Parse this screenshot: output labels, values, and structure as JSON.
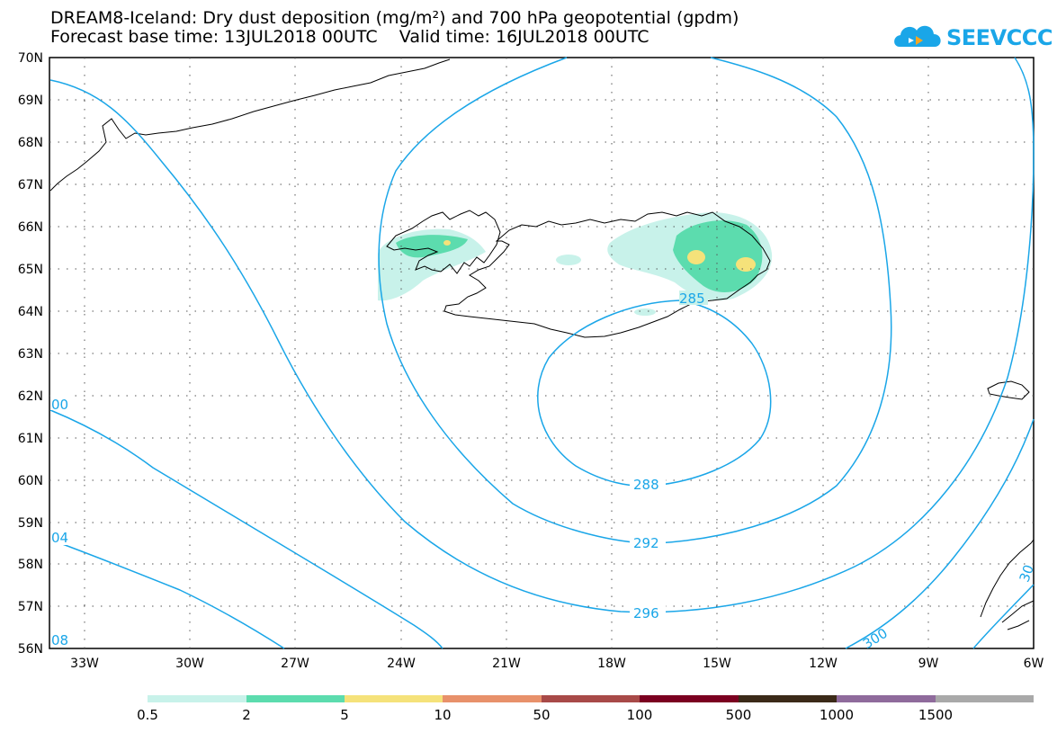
{
  "header": {
    "title_line1": "DREAM8-Iceland: Dry dust deposition (mg/m²) and 700 hPa geopotential (gpdm)",
    "title_line2": "Forecast base time: 13JUL2018 00UTC    Valid time: 16JUL2018 00UTC"
  },
  "logo": {
    "text": "SEEVCCC",
    "color": "#1aa6e8"
  },
  "axes": {
    "latitudes": [
      "70N",
      "69N",
      "68N",
      "67N",
      "66N",
      "65N",
      "64N",
      "63N",
      "62N",
      "61N",
      "60N",
      "59N",
      "58N",
      "57N",
      "56N"
    ],
    "longitudes": [
      "33W",
      "30W",
      "27W",
      "24W",
      "21W",
      "18W",
      "15W",
      "12W",
      "9W",
      "6W"
    ]
  },
  "contours": {
    "color": "#1aa6e8",
    "labels": [
      "00",
      "04",
      "08",
      "288",
      "292",
      "296",
      "300",
      "285",
      "30"
    ]
  },
  "legend": {
    "labels": [
      "0.5",
      "2",
      "5",
      "10",
      "50",
      "100",
      "500",
      "1000",
      "1500"
    ],
    "colors": [
      "#c8f2ea",
      "#5cdcae",
      "#f5e27a",
      "#e8916b",
      "#a84a48",
      "#7b0020",
      "#3b2a18",
      "#8f6b9c",
      "#a9a9a9"
    ]
  }
}
